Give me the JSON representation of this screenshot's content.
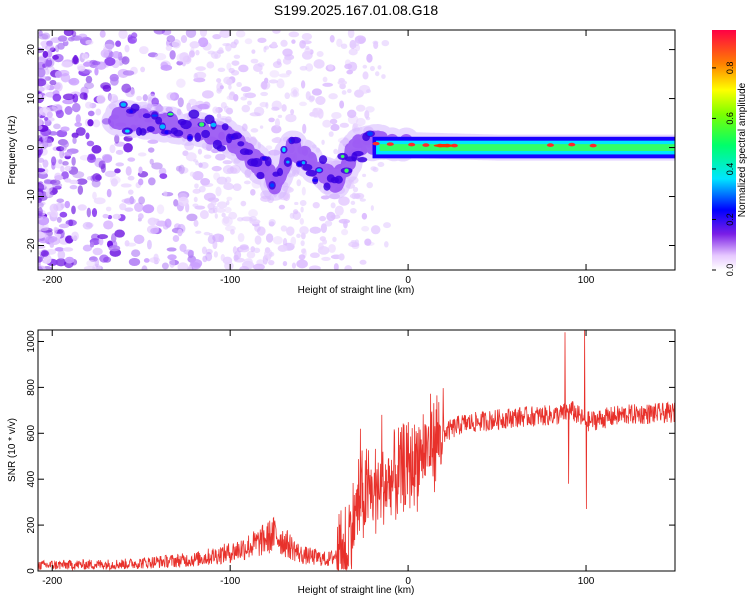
{
  "title": "S199.2025.167.01.08.G18",
  "chart_data": [
    {
      "type": "heatmap",
      "xlabel": "Height of straight line (km)",
      "ylabel": "Frequency (Hz)",
      "xlim": [
        -208,
        150
      ],
      "ylim": [
        -25,
        24
      ],
      "xticks": [
        -200,
        -100,
        0,
        100
      ],
      "yticks": [
        -20,
        -10,
        0,
        10,
        20
      ],
      "colorbar": {
        "label": "Normalized spectral amplitude",
        "range": [
          0,
          0.95
        ],
        "ticks": [
          0.0,
          0.2,
          0.4,
          0.6,
          0.8
        ]
      },
      "ridge": [
        {
          "x": -160,
          "f": 6
        },
        {
          "x": -140,
          "f": 5
        },
        {
          "x": -120,
          "f": 4
        },
        {
          "x": -100,
          "f": 2
        },
        {
          "x": -85,
          "f": -3
        },
        {
          "x": -75,
          "f": -7
        },
        {
          "x": -65,
          "f": 0
        },
        {
          "x": -55,
          "f": -3
        },
        {
          "x": -40,
          "f": -7
        },
        {
          "x": -30,
          "f": 0
        },
        {
          "x": -20,
          "f": 1
        },
        {
          "x": 0,
          "f": 0.5
        },
        {
          "x": 50,
          "f": 0
        },
        {
          "x": 100,
          "f": 0
        },
        {
          "x": 150,
          "f": 0
        }
      ]
    },
    {
      "type": "line",
      "xlabel": "Height of straight line (km)",
      "ylabel": "SNR (10 * v/v)",
      "xlim": [
        -208,
        150
      ],
      "ylim": [
        0,
        1050
      ],
      "xticks": [
        -200,
        -100,
        0,
        100
      ],
      "yticks": [
        0,
        200,
        400,
        600,
        800,
        1000
      ],
      "color": "#e8312b",
      "trend": [
        {
          "x": -208,
          "y": 25
        },
        {
          "x": -160,
          "y": 30
        },
        {
          "x": -120,
          "y": 50
        },
        {
          "x": -100,
          "y": 80
        },
        {
          "x": -85,
          "y": 120
        },
        {
          "x": -75,
          "y": 160
        },
        {
          "x": -60,
          "y": 70
        },
        {
          "x": -45,
          "y": 50
        },
        {
          "x": -35,
          "y": 90
        },
        {
          "x": -28,
          "y": 300
        },
        {
          "x": -20,
          "y": 350
        },
        {
          "x": -10,
          "y": 380
        },
        {
          "x": 0,
          "y": 450
        },
        {
          "x": 15,
          "y": 580
        },
        {
          "x": 30,
          "y": 640
        },
        {
          "x": 60,
          "y": 670
        },
        {
          "x": 85,
          "y": 680
        },
        {
          "x": 92,
          "y": 700
        },
        {
          "x": 100,
          "y": 650
        },
        {
          "x": 120,
          "y": 680
        },
        {
          "x": 150,
          "y": 690
        }
      ],
      "spikes": [
        {
          "x": -27,
          "y": 620
        },
        {
          "x": -15,
          "y": 680
        },
        {
          "x": 88,
          "y": 1040
        },
        {
          "x": 90,
          "y": 380
        },
        {
          "x": 99,
          "y": 1050
        },
        {
          "x": 100,
          "y": 270
        }
      ]
    }
  ]
}
